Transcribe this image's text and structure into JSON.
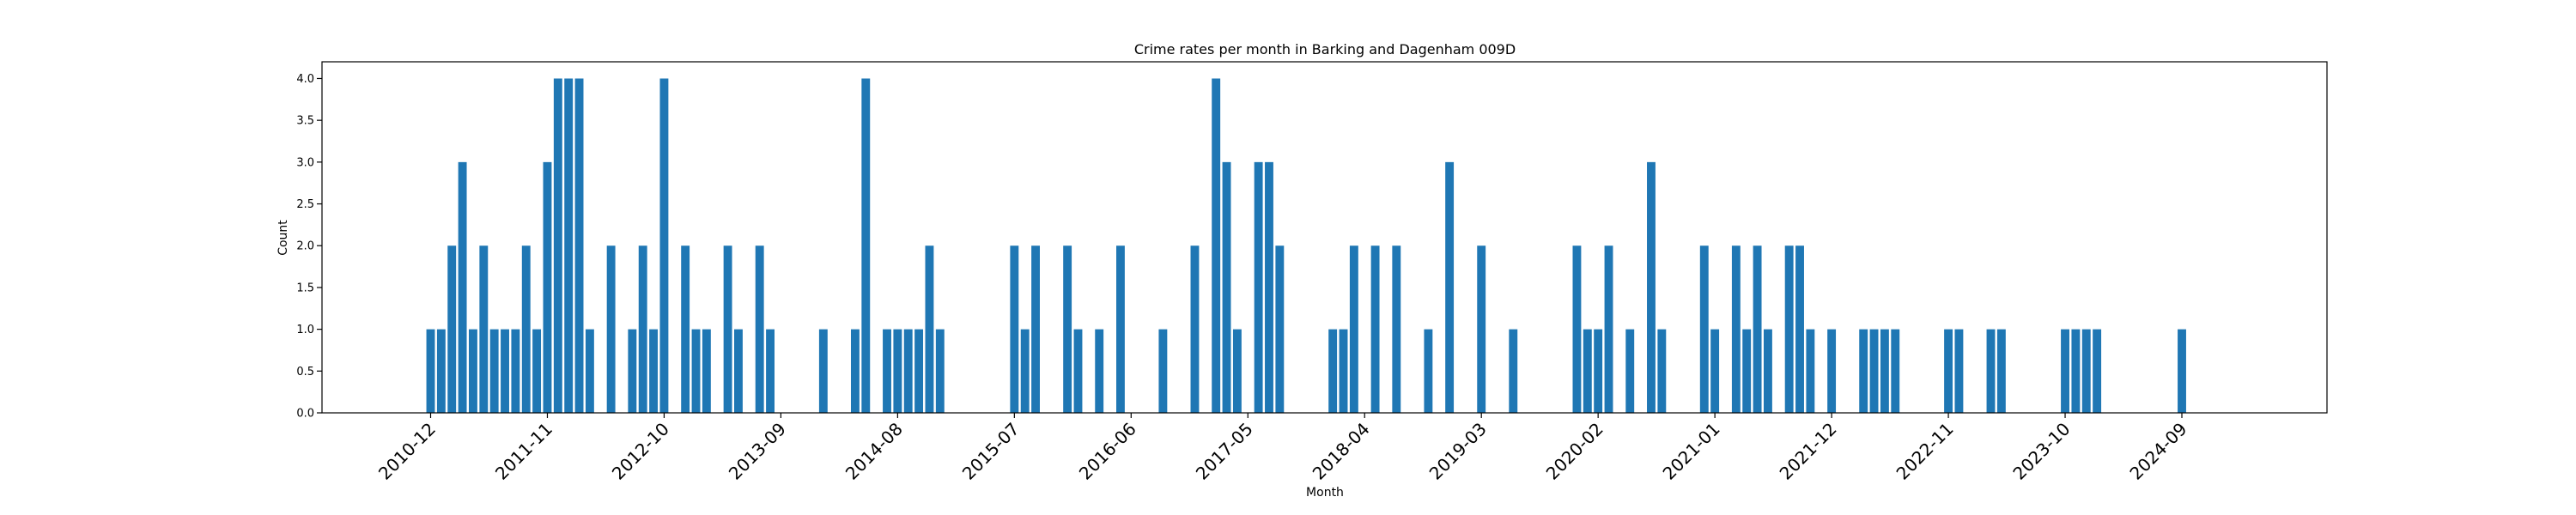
{
  "chart_data": {
    "type": "bar",
    "title": "Crime rates per month in Barking and Dagenham 009D",
    "xlabel": "Month",
    "ylabel": "Count",
    "ylim": [
      0,
      4.2
    ],
    "yticks": [
      "0.0",
      "0.5",
      "1.0",
      "1.5",
      "2.0",
      "2.5",
      "3.0",
      "3.5",
      "4.0"
    ],
    "xtick_labels": [
      "2010-12",
      "2011-11",
      "2012-10",
      "2013-09",
      "2014-08",
      "2015-07",
      "2016-06",
      "2017-05",
      "2018-04",
      "2019-03",
      "2020-02",
      "2021-01",
      "2021-12",
      "2022-11",
      "2023-10",
      "2024-09"
    ],
    "bar_color": "#1f77b4",
    "grid": false,
    "categories": [
      "2010-12",
      "2011-01",
      "2011-02",
      "2011-03",
      "2011-04",
      "2011-05",
      "2011-06",
      "2011-07",
      "2011-08",
      "2011-09",
      "2011-10",
      "2011-11",
      "2011-12",
      "2012-01",
      "2012-02",
      "2012-03",
      "2012-05",
      "2012-07",
      "2012-08",
      "2012-09",
      "2012-10",
      "2012-12",
      "2013-01",
      "2013-02",
      "2013-04",
      "2013-05",
      "2013-07",
      "2013-08",
      "2014-01",
      "2014-04",
      "2014-05",
      "2014-07",
      "2014-08",
      "2014-09",
      "2014-10",
      "2014-11",
      "2014-12",
      "2015-07",
      "2015-08",
      "2015-09",
      "2015-12",
      "2016-01",
      "2016-03",
      "2016-05",
      "2016-09",
      "2016-12",
      "2017-02",
      "2017-03",
      "2017-04",
      "2017-06",
      "2017-07",
      "2017-08",
      "2018-01",
      "2018-02",
      "2018-03",
      "2018-05",
      "2018-07",
      "2018-10",
      "2018-12",
      "2019-03",
      "2019-06",
      "2019-12",
      "2020-01",
      "2020-02",
      "2020-03",
      "2020-05",
      "2020-07",
      "2020-08",
      "2020-12",
      "2021-01",
      "2021-03",
      "2021-04",
      "2021-05",
      "2021-06",
      "2021-08",
      "2021-09",
      "2021-10",
      "2021-12",
      "2022-03",
      "2022-04",
      "2022-05",
      "2022-06",
      "2022-11",
      "2022-12",
      "2023-03",
      "2023-04",
      "2023-10",
      "2023-11",
      "2023-12",
      "2024-01",
      "2024-09"
    ],
    "values": [
      1,
      1,
      2,
      3,
      1,
      2,
      1,
      1,
      1,
      2,
      1,
      3,
      4,
      4,
      4,
      1,
      2,
      1,
      2,
      1,
      4,
      2,
      1,
      1,
      2,
      1,
      2,
      1,
      1,
      1,
      4,
      1,
      1,
      1,
      1,
      2,
      1,
      2,
      1,
      2,
      2,
      1,
      1,
      2,
      1,
      2,
      4,
      3,
      1,
      3,
      3,
      2,
      1,
      1,
      2,
      2,
      2,
      1,
      3,
      2,
      1,
      2,
      1,
      1,
      2,
      1,
      3,
      1,
      2,
      1,
      2,
      1,
      2,
      1,
      2,
      2,
      1,
      1,
      1,
      1,
      1,
      1,
      1,
      1,
      1,
      1,
      1,
      1,
      1,
      1,
      1
    ]
  }
}
